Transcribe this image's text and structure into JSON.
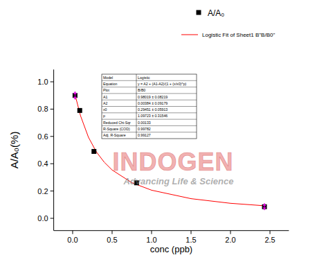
{
  "chart_data": {
    "type": "scatter",
    "x_label": "conc (ppb)",
    "y_label": "A/A₀(%)",
    "xlim": [
      -0.24,
      2.74
    ],
    "ylim": [
      -0.09,
      1.09
    ],
    "xticks": [
      {
        "value": 0,
        "label": "0.0"
      },
      {
        "value": 0.5,
        "label": "0.5"
      },
      {
        "value": 1,
        "label": "1.0"
      },
      {
        "value": 1.5,
        "label": "1.5"
      },
      {
        "value": 2,
        "label": "2.0"
      },
      {
        "value": 2.5,
        "label": "2.5"
      }
    ],
    "yticks": [
      {
        "value": 0,
        "label": "0.0"
      },
      {
        "value": 0.2,
        "label": "0.2"
      },
      {
        "value": 0.4,
        "label": "0.4"
      },
      {
        "value": 0.6,
        "label": "0.6"
      },
      {
        "value": 0.8,
        "label": "0.8"
      },
      {
        "value": 1,
        "label": "1.0"
      }
    ],
    "grid": false,
    "legend": "top-right",
    "series": [
      {
        "name": "A/A₀",
        "type": "scatter",
        "marker": "square",
        "color": "#000000",
        "x": [
          0.03,
          0.09,
          0.27,
          0.81,
          2.43
        ],
        "values": [
          0.9,
          0.79,
          0.49,
          0.26,
          0.085
        ],
        "errors": [
          0.03,
          null,
          null,
          null,
          0.025
        ],
        "error_color": "#e000e0"
      },
      {
        "name": "Logistic Fit of Sheet1 B\"B/B0\"",
        "type": "line",
        "line_style": "solid",
        "color": "#ff0000",
        "x": [
          0.03,
          0.1,
          0.2,
          0.3,
          0.4,
          0.5,
          0.75,
          1.0,
          1.5,
          2.0,
          2.43
        ],
        "values": [
          0.906,
          0.751,
          0.594,
          0.487,
          0.411,
          0.354,
          0.261,
          0.206,
          0.144,
          0.11,
          0.092
        ]
      }
    ]
  },
  "fit_table": {
    "rows": [
      [
        "Model",
        "Logistic"
      ],
      [
        "Equation",
        "y = A2 + (A1-A2)/(1 + (x/x0)^p)"
      ],
      [
        "Plot",
        "B/B0"
      ],
      [
        "A1",
        "0.98019 ± 0.08219"
      ],
      [
        "A2",
        "0.00384 ± 0.09179"
      ],
      [
        "x0",
        "0.29451 ± 0.05913"
      ],
      [
        "p",
        "1.09723 ± 0.31546"
      ],
      [
        "Reduced Chi-Sqr",
        "0.00133"
      ],
      [
        "R-Square (COD)",
        "0.99782"
      ],
      [
        "Adj. R-Square",
        "0.99127"
      ]
    ]
  },
  "watermark": {
    "title": "INDOGEN",
    "subtitle": "Advancing Life & Science"
  }
}
